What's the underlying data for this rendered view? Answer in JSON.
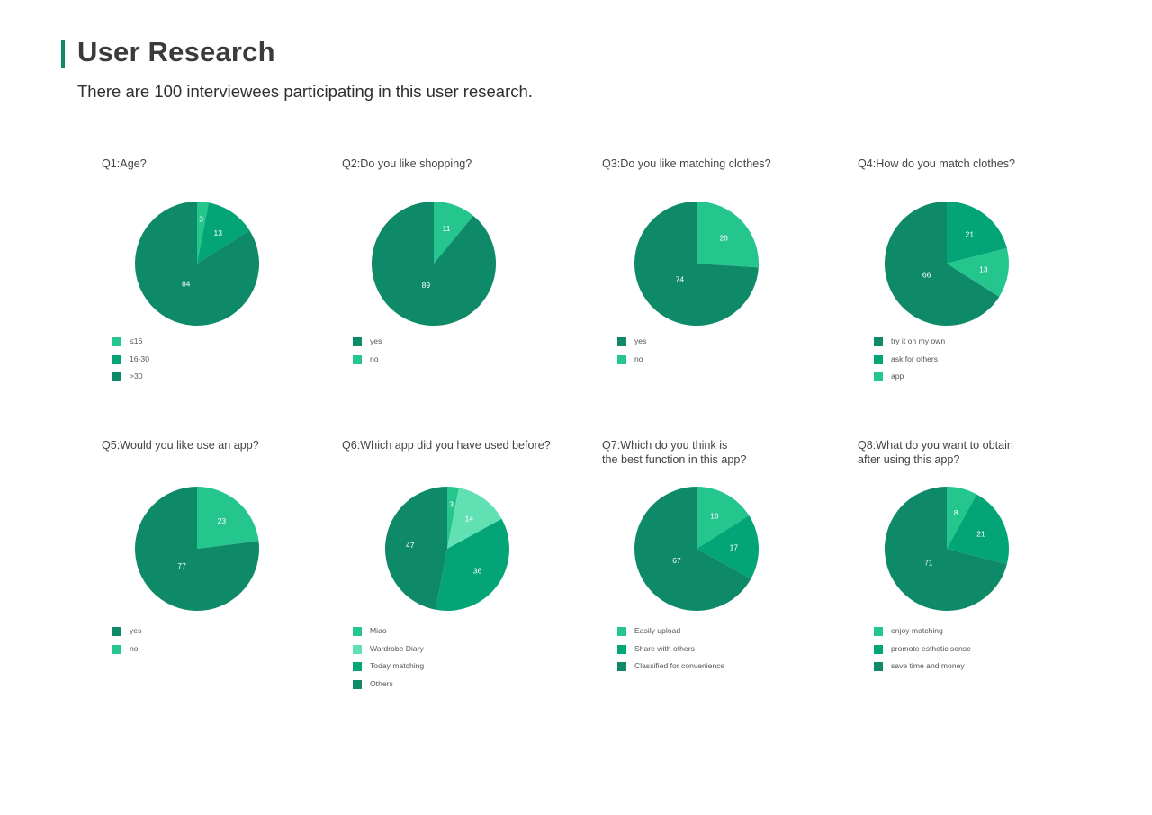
{
  "header": {
    "title": "User Research",
    "subtitle": "There are 100 interviewees participating in this user research."
  },
  "colors": {
    "accent_bar": "#0e8a69",
    "dark_green": "#0e8a69",
    "mid_green": "#03a577",
    "light_green": "#24c68e",
    "pale_green": "#61e0b4"
  },
  "chart_data": [
    {
      "type": "pie",
      "title": "Q1:Age?",
      "labels": [
        "≤16",
        "16-30",
        ">30"
      ],
      "values": [
        3,
        13,
        84
      ],
      "colors": [
        "#24c68e",
        "#03a577",
        "#0e8a69"
      ]
    },
    {
      "type": "pie",
      "title": "Q2:Do you like shopping?",
      "labels": [
        "yes",
        "no"
      ],
      "values": [
        89,
        11
      ],
      "colors": [
        "#0e8a69",
        "#24c68e"
      ]
    },
    {
      "type": "pie",
      "title": "Q3:Do you like matching clothes?",
      "labels": [
        "yes",
        "no"
      ],
      "values": [
        74,
        26
      ],
      "colors": [
        "#0e8a69",
        "#24c68e"
      ]
    },
    {
      "type": "pie",
      "title": "Q4:How do you match clothes?",
      "labels": [
        "try it on my own",
        "ask for others",
        "app"
      ],
      "values": [
        66,
        21,
        13
      ],
      "colors": [
        "#0e8a69",
        "#03a577",
        "#24c68e"
      ]
    },
    {
      "type": "pie",
      "title": "Q5:Would you like use an app?",
      "labels": [
        "yes",
        "no"
      ],
      "values": [
        77,
        23
      ],
      "colors": [
        "#0e8a69",
        "#24c68e"
      ]
    },
    {
      "type": "pie",
      "title": "Q6:Which app did you have used before?",
      "labels": [
        "Miao",
        "Wardrobe Diary",
        "Today matching",
        "Others"
      ],
      "values": [
        3,
        14,
        36,
        47
      ],
      "colors": [
        "#24c68e",
        "#61e0b4",
        "#03a577",
        "#0e8a69"
      ]
    },
    {
      "type": "pie",
      "title": "Q7:Which do you think is the best function in this app?",
      "labels": [
        "Easily upload",
        "Share with others",
        "Classified for convenience"
      ],
      "values": [
        16,
        17,
        67
      ],
      "colors": [
        "#24c68e",
        "#03a577",
        "#0e8a69"
      ]
    },
    {
      "type": "pie",
      "title": "Q8:What do you want to obtain after using this app?",
      "labels": [
        "enjoy matching",
        "promote esthetic sense",
        "save time and money"
      ],
      "values": [
        8,
        21,
        71
      ],
      "colors": [
        "#24c68e",
        "#03a577",
        "#0e8a69"
      ]
    }
  ]
}
